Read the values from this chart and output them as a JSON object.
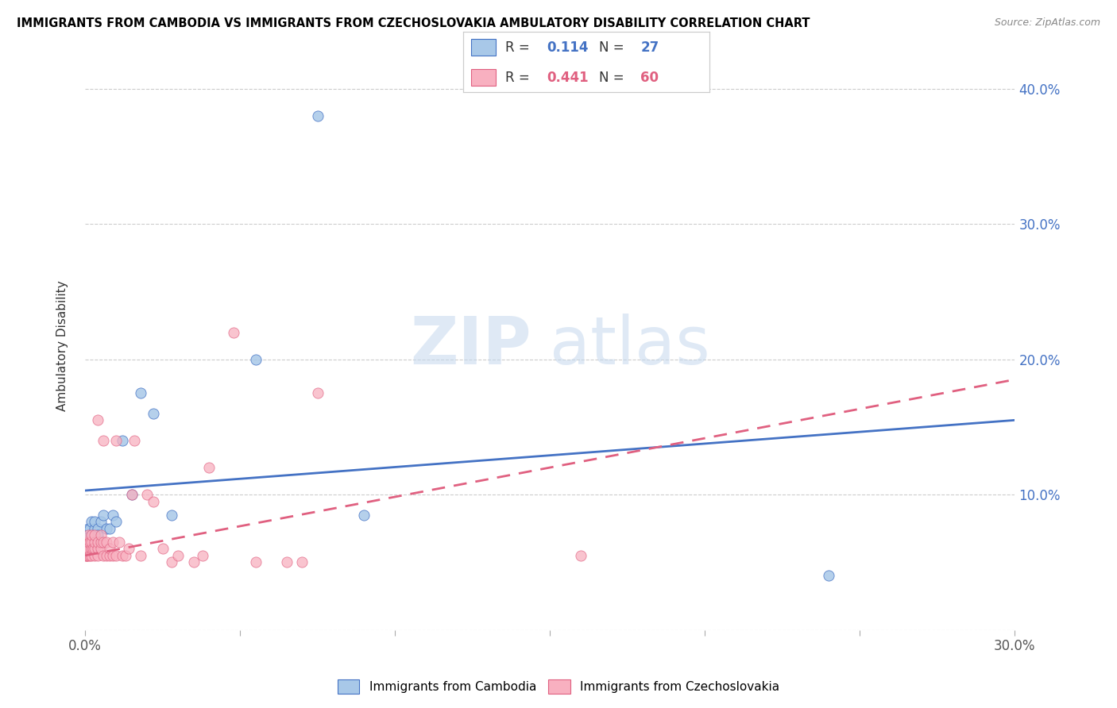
{
  "title": "IMMIGRANTS FROM CAMBODIA VS IMMIGRANTS FROM CZECHOSLOVAKIA AMBULATORY DISABILITY CORRELATION CHART",
  "source": "Source: ZipAtlas.com",
  "ylabel": "Ambulatory Disability",
  "legend_label1": "Immigrants from Cambodia",
  "legend_label2": "Immigrants from Czechoslovakia",
  "R1": 0.114,
  "N1": 27,
  "R2": 0.441,
  "N2": 60,
  "color1": "#a8c8e8",
  "color2": "#f8b0c0",
  "line_color1": "#4472c4",
  "line_color2": "#e06080",
  "watermark_zip": "ZIP",
  "watermark_atlas": "atlas",
  "xmin": 0.0,
  "xmax": 0.3,
  "ymin": 0.0,
  "ymax": 0.42,
  "yticks": [
    0.0,
    0.1,
    0.2,
    0.3,
    0.4
  ],
  "xtick_left": 0.0,
  "xtick_right": 0.3,
  "xtick_minor": [
    0.05,
    0.1,
    0.15,
    0.2,
    0.25
  ],
  "cambodia_x": [
    0.0005,
    0.001,
    0.001,
    0.0015,
    0.002,
    0.002,
    0.002,
    0.003,
    0.003,
    0.003,
    0.004,
    0.004,
    0.005,
    0.006,
    0.007,
    0.008,
    0.009,
    0.01,
    0.012,
    0.015,
    0.018,
    0.022,
    0.028,
    0.055,
    0.075,
    0.09,
    0.24
  ],
  "cambodia_y": [
    0.065,
    0.07,
    0.075,
    0.075,
    0.08,
    0.07,
    0.065,
    0.075,
    0.08,
    0.065,
    0.075,
    0.07,
    0.08,
    0.085,
    0.075,
    0.075,
    0.085,
    0.08,
    0.14,
    0.1,
    0.175,
    0.16,
    0.085,
    0.2,
    0.38,
    0.085,
    0.04
  ],
  "czech_x": [
    0.0002,
    0.0003,
    0.0004,
    0.0005,
    0.0006,
    0.0007,
    0.001,
    0.001,
    0.001,
    0.001,
    0.0015,
    0.0015,
    0.002,
    0.002,
    0.002,
    0.002,
    0.0025,
    0.003,
    0.003,
    0.003,
    0.003,
    0.004,
    0.004,
    0.004,
    0.004,
    0.005,
    0.005,
    0.005,
    0.006,
    0.006,
    0.006,
    0.007,
    0.007,
    0.008,
    0.008,
    0.009,
    0.009,
    0.01,
    0.01,
    0.011,
    0.012,
    0.013,
    0.014,
    0.015,
    0.016,
    0.018,
    0.02,
    0.022,
    0.025,
    0.028,
    0.03,
    0.035,
    0.038,
    0.04,
    0.048,
    0.055,
    0.065,
    0.07,
    0.075,
    0.16
  ],
  "czech_y": [
    0.055,
    0.06,
    0.055,
    0.065,
    0.055,
    0.06,
    0.055,
    0.06,
    0.065,
    0.07,
    0.055,
    0.065,
    0.055,
    0.06,
    0.065,
    0.07,
    0.06,
    0.055,
    0.06,
    0.065,
    0.07,
    0.055,
    0.06,
    0.065,
    0.155,
    0.06,
    0.065,
    0.07,
    0.055,
    0.065,
    0.14,
    0.055,
    0.065,
    0.055,
    0.06,
    0.055,
    0.065,
    0.055,
    0.14,
    0.065,
    0.055,
    0.055,
    0.06,
    0.1,
    0.14,
    0.055,
    0.1,
    0.095,
    0.06,
    0.05,
    0.055,
    0.05,
    0.055,
    0.12,
    0.22,
    0.05,
    0.05,
    0.05,
    0.175,
    0.055
  ],
  "trend_blue_x0": 0.0,
  "trend_blue_x1": 0.3,
  "trend_blue_y0": 0.103,
  "trend_blue_y1": 0.155,
  "trend_pink_x0": 0.0,
  "trend_pink_x1": 0.3,
  "trend_pink_y0": 0.055,
  "trend_pink_y1": 0.185
}
